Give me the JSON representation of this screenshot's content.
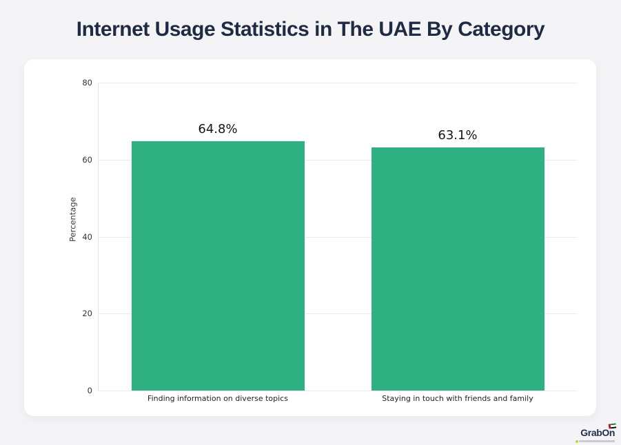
{
  "title": {
    "text": "Internet Usage Statistics in The UAE By Category",
    "color": "#1f2b42"
  },
  "chart_data": {
    "type": "bar",
    "title": "Internet Usage Statistics in The UAE By Category",
    "categories": [
      "Finding information on diverse topics",
      "Staying in touch with friends and family"
    ],
    "values": [
      64.8,
      63.1
    ],
    "value_labels": [
      "64.8%",
      "63.1%"
    ],
    "xlabel": "",
    "ylabel": "Percentage",
    "ylim": [
      0,
      80
    ],
    "yticks": [
      0,
      20,
      40,
      60,
      80
    ],
    "grid": true,
    "legend": "none",
    "bar_color": "#2eb082"
  },
  "colors": {
    "page_background": "#f4f3f6",
    "card_background": "#ffffff",
    "gridline": "#ececec",
    "bar": "#2eb082",
    "title": "#1f2b42"
  },
  "logo": {
    "text": "GrabOn",
    "flag_icon": "uae-flag-icon"
  }
}
